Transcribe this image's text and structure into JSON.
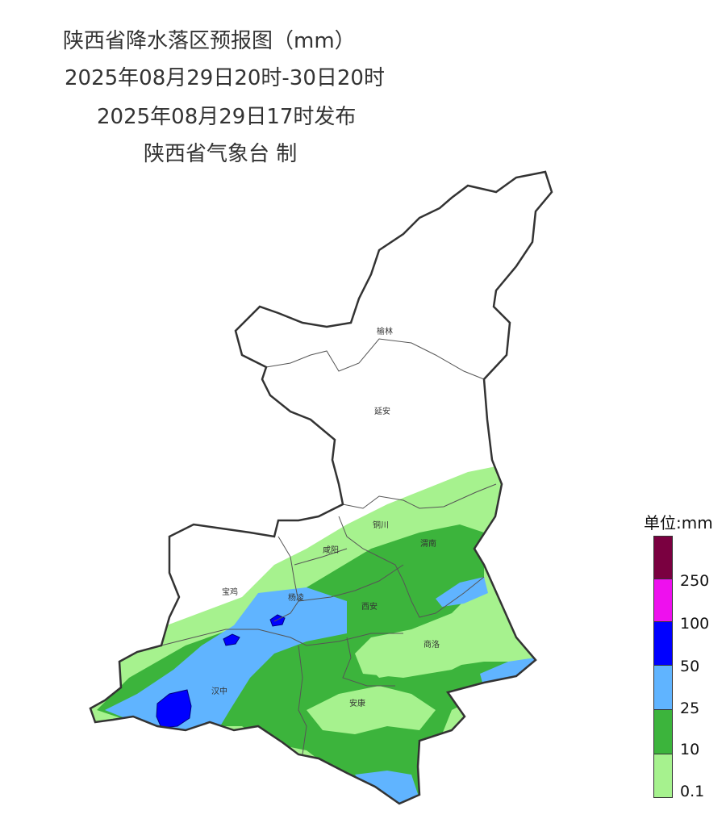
{
  "title": {
    "line1": "陕西省降水落区预报图（mm）",
    "line2": "2025年08月29日20时-30日20时",
    "line3": "2025年08月29日17时发布",
    "line4": "陕西省气象台 制"
  },
  "cities": [
    {
      "key": "yulin",
      "label": "榆林"
    },
    {
      "key": "yanan",
      "label": "延安"
    },
    {
      "key": "tongchuan",
      "label": "铜川"
    },
    {
      "key": "weinan",
      "label": "渭南"
    },
    {
      "key": "xianyang",
      "label": "咸阳"
    },
    {
      "key": "baoji",
      "label": "宝鸡"
    },
    {
      "key": "yangling",
      "label": "杨凌"
    },
    {
      "key": "xian",
      "label": "西安"
    },
    {
      "key": "shangluo",
      "label": "商洛"
    },
    {
      "key": "hanzhong",
      "label": "汉中"
    },
    {
      "key": "ankang",
      "label": "安康"
    }
  ],
  "legend": {
    "title": "单位:mm",
    "bins": [
      {
        "label": "250",
        "color": "#7a0040"
      },
      {
        "label": "100",
        "color": "#ee10ee"
      },
      {
        "label": "50",
        "color": "#0000ff"
      },
      {
        "label": "25",
        "color": "#60b4ff"
      },
      {
        "label": "10",
        "color": "#3cb43c"
      },
      {
        "label": "0.1",
        "color": "#a6f28e"
      }
    ]
  },
  "colors": {
    "no_rain": "#ffffff",
    "light": "#a6f28e",
    "moderate": "#3cb43c",
    "heavy": "#60b4ff",
    "rainstorm": "#0000ff",
    "border": "#333333"
  }
}
